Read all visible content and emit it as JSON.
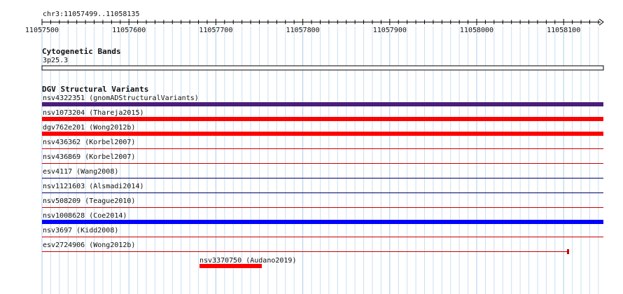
{
  "view": {
    "location": "chr3:11057499..11058135",
    "ruler_ticks": [
      "11057500",
      "11057600",
      "11057700",
      "11057800",
      "11057900",
      "11058000",
      "11058100"
    ]
  },
  "tracks": {
    "cyto": {
      "title": "Cytogenetic Bands",
      "band": "3p25.3"
    },
    "dgv": {
      "title": "DGV Structural Variants",
      "features": [
        {
          "label": "nsv4322351 (gnomADStructuralVariants)",
          "color": "#4b1d7a",
          "style": "thick"
        },
        {
          "label": "nsv1073204 (Thareja2015)",
          "color": "#ff0000",
          "style": "thick"
        },
        {
          "label": "dgv762e201 (Wong2012b)",
          "color": "#ff0000",
          "style": "thick"
        },
        {
          "label": "nsv436362 (Korbel2007)",
          "color": "#cc0000",
          "style": "thin"
        },
        {
          "label": "nsv436869 (Korbel2007)",
          "color": "#cc0000",
          "style": "thin"
        },
        {
          "label": "esv4117 (Wang2008)",
          "color": "#000066",
          "style": "thin"
        },
        {
          "label": "nsv1121603 (Alsmadi2014)",
          "color": "#000066",
          "style": "thin"
        },
        {
          "label": "nsv508209 (Teague2010)",
          "color": "#cc0000",
          "style": "thin"
        },
        {
          "label": "nsv1008628 (Coe2014)",
          "color": "#0000ff",
          "style": "thick"
        },
        {
          "label": "nsv3697 (Kidd2008)",
          "color": "#cc0000",
          "style": "thin"
        },
        {
          "label": "esv2724906 (Wong2012b)",
          "color": "#cc0000",
          "style": "thin-end"
        },
        {
          "label": "nsv3370750 (Audano2019)",
          "color": "#ff0000",
          "style": "short"
        }
      ]
    }
  }
}
